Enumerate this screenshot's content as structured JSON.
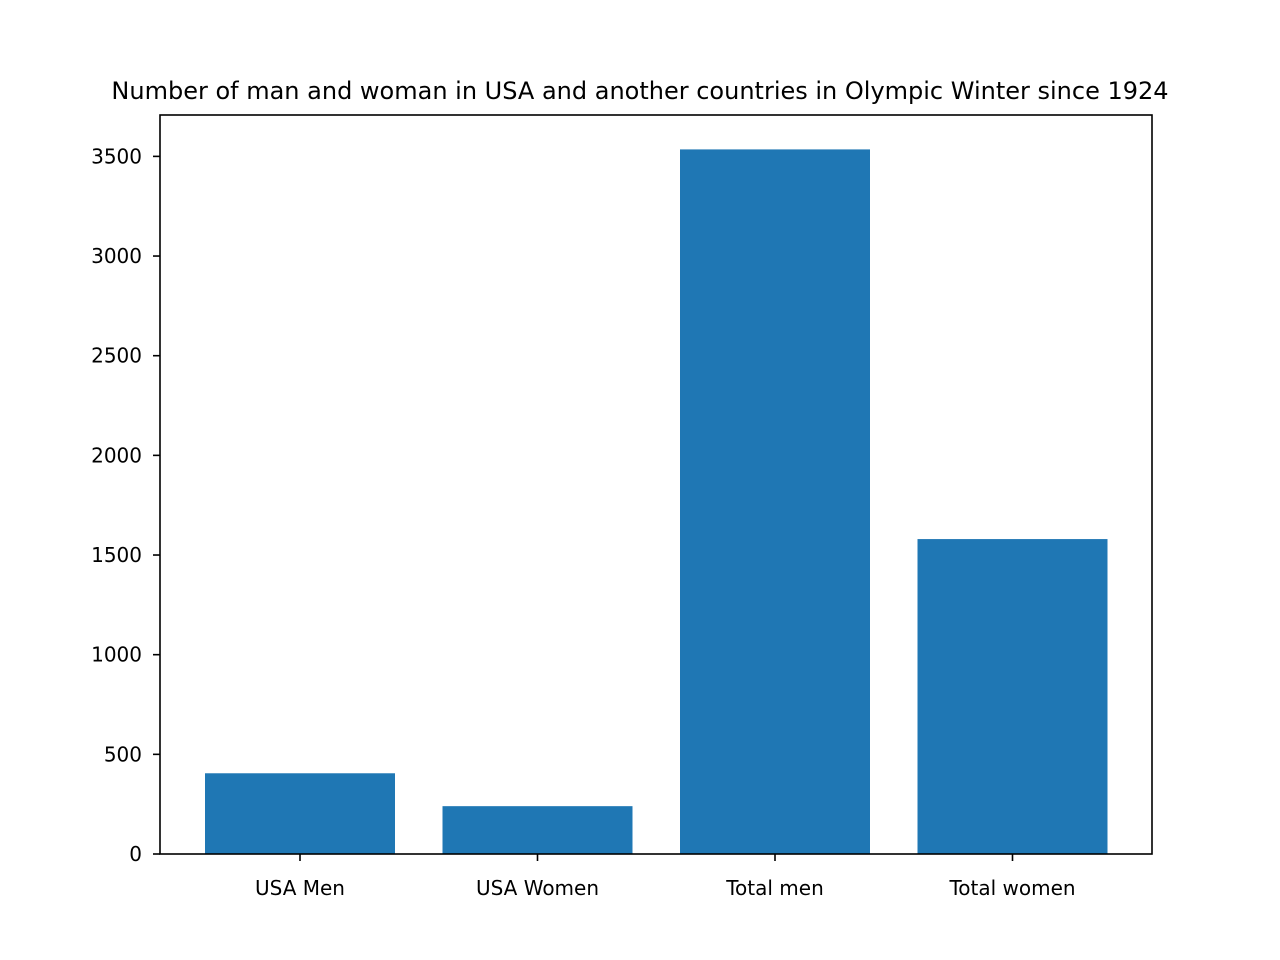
{
  "chart_data": {
    "type": "bar",
    "title": "Number of man and woman in USA and another countries in Olympic Winter since 1924",
    "xlabel": "",
    "ylabel": "",
    "categories": [
      "USA Men",
      "USA Women",
      "Total men",
      "Total women"
    ],
    "values": [
      405,
      240,
      3535,
      1580
    ],
    "ylim": [
      0,
      3700
    ],
    "yticks": [
      0,
      500,
      1000,
      1500,
      2000,
      2500,
      3000,
      3500
    ],
    "bar_color": "#1f77b4",
    "grid": false,
    "legend": "none"
  }
}
